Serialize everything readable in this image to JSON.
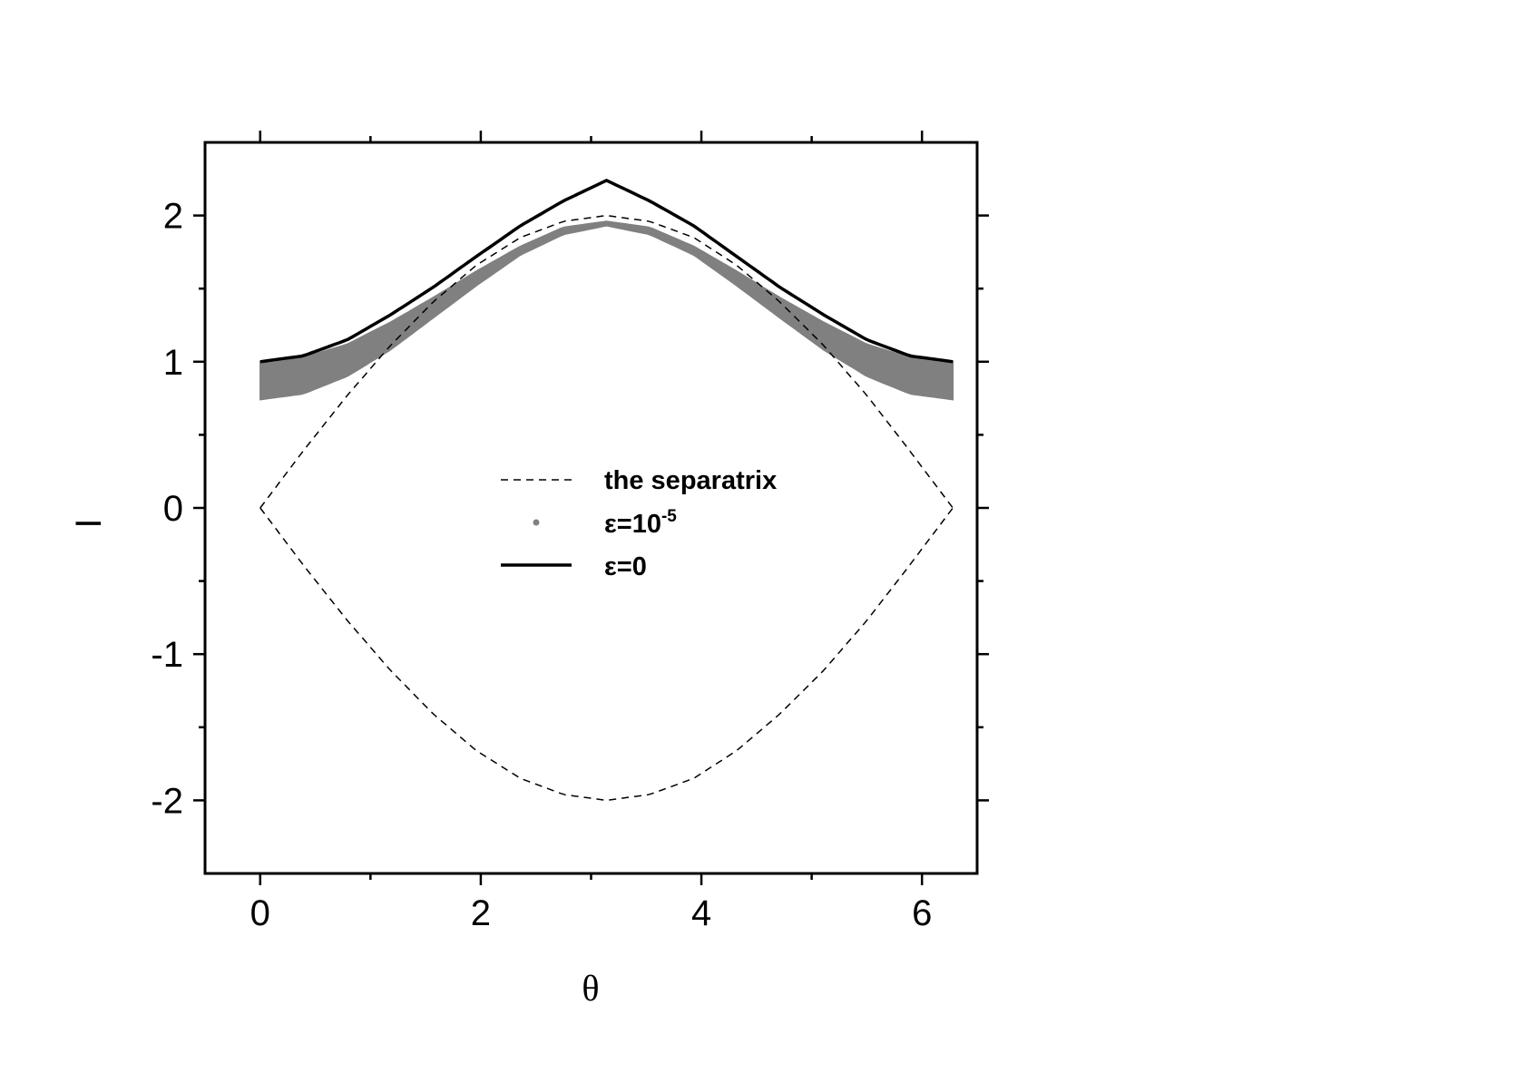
{
  "chart_data": {
    "type": "line",
    "xlabel": "θ",
    "ylabel": "I",
    "xlim": [
      -0.5,
      6.5
    ],
    "ylim": [
      -2.5,
      2.5
    ],
    "xticks": [
      0,
      2,
      4,
      6
    ],
    "xtick_labels": [
      "0",
      "2",
      "4",
      "6"
    ],
    "yticks": [
      2,
      1,
      0,
      -1,
      -2
    ],
    "ytick_labels": [
      "2",
      "1",
      "0",
      "-1",
      "-2"
    ],
    "grid": false,
    "legend_position": "center",
    "series": [
      {
        "name": "the separatrix",
        "style": "dashed",
        "color": "#000000",
        "x": [
          0,
          0.39,
          0.79,
          1.18,
          1.57,
          1.96,
          2.36,
          2.75,
          3.14,
          3.53,
          3.93,
          4.32,
          4.71,
          5.11,
          5.5,
          5.89,
          6.28
        ],
        "y_upper": [
          0,
          0.39,
          0.77,
          1.11,
          1.41,
          1.66,
          1.85,
          1.96,
          2.0,
          1.96,
          1.85,
          1.66,
          1.41,
          1.11,
          0.77,
          0.39,
          0
        ],
        "y_lower": [
          0,
          -0.39,
          -0.77,
          -1.11,
          -1.41,
          -1.66,
          -1.85,
          -1.96,
          -2.0,
          -1.96,
          -1.85,
          -1.66,
          -1.41,
          -1.11,
          -0.77,
          -0.39,
          0
        ]
      },
      {
        "name": "ε=10",
        "name_superscript": "-5",
        "style": "scatter band",
        "color": "#808080",
        "x": [
          0,
          0.39,
          0.79,
          1.18,
          1.57,
          1.96,
          2.36,
          2.75,
          3.14,
          3.53,
          3.93,
          4.32,
          4.71,
          5.11,
          5.5,
          5.89,
          6.28
        ],
        "y_top": [
          1.0,
          1.03,
          1.12,
          1.27,
          1.44,
          1.62,
          1.79,
          1.92,
          1.96,
          1.92,
          1.79,
          1.62,
          1.44,
          1.27,
          1.12,
          1.03,
          1.0
        ],
        "y_bottom": [
          0.74,
          0.78,
          0.9,
          1.08,
          1.3,
          1.52,
          1.73,
          1.87,
          1.93,
          1.87,
          1.73,
          1.52,
          1.3,
          1.08,
          0.9,
          0.78,
          0.74
        ]
      },
      {
        "name": "ε=0",
        "style": "solid",
        "color": "#000000",
        "x": [
          0,
          0.39,
          0.79,
          1.18,
          1.57,
          1.96,
          2.36,
          2.75,
          3.14,
          3.53,
          3.93,
          4.32,
          4.71,
          5.11,
          5.5,
          5.89,
          6.28
        ],
        "y": [
          1.0,
          1.04,
          1.15,
          1.32,
          1.51,
          1.72,
          1.93,
          2.1,
          2.24,
          2.1,
          1.93,
          1.72,
          1.51,
          1.32,
          1.15,
          1.04,
          1.0
        ]
      }
    ]
  }
}
